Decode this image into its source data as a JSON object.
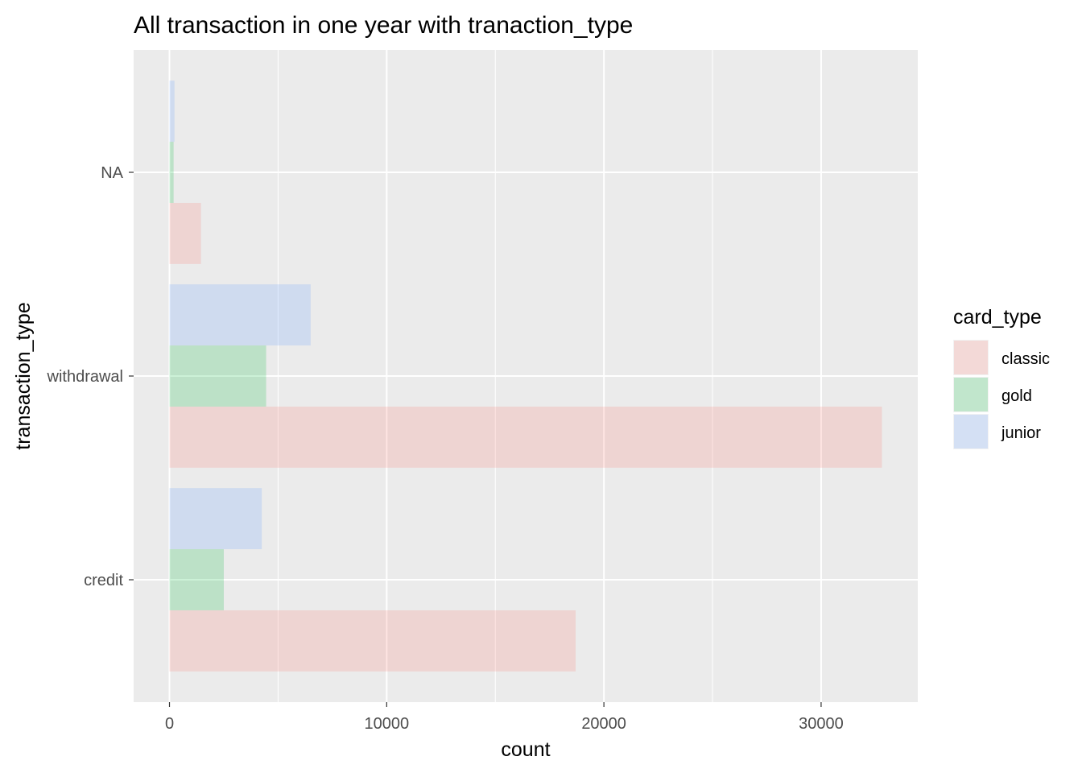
{
  "chart_data": {
    "type": "bar",
    "orientation": "horizontal",
    "title": "All transaction in one year with tranaction_type",
    "xlabel": "count",
    "ylabel": "transaction_type",
    "categories": [
      "credit",
      "withdrawal",
      "NA"
    ],
    "xlim": [
      -1650,
      34450
    ],
    "xticks": [
      0,
      10000,
      20000,
      30000
    ],
    "grid": true,
    "legend_title": "card_type",
    "legend_position": "right",
    "series": [
      {
        "name": "classic",
        "color": "#F8766D",
        "values": [
          18700,
          32800,
          1450
        ]
      },
      {
        "name": "gold",
        "color": "#00BA38",
        "values": [
          2500,
          4450,
          190
        ]
      },
      {
        "name": "junior",
        "color": "#619CFF",
        "values": [
          4250,
          6500,
          230
        ]
      }
    ]
  }
}
